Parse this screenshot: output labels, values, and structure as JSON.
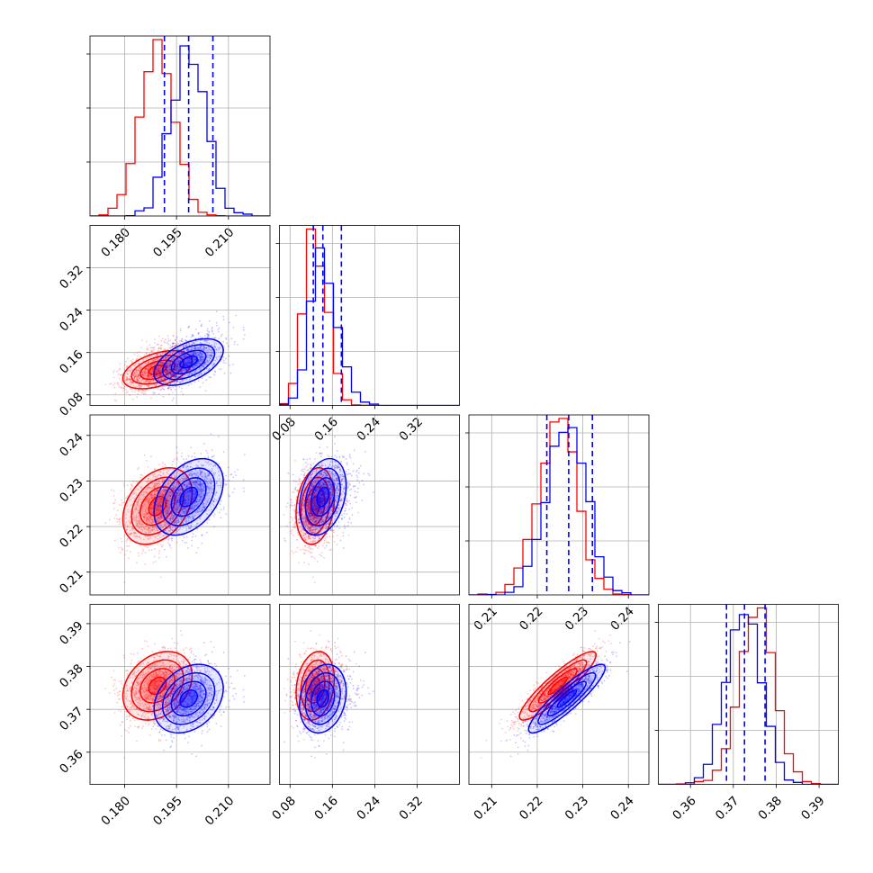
{
  "chart_data": {
    "type": "corner",
    "grid": true,
    "colors": {
      "series_a": "#ff0000",
      "series_b": "#0000ff",
      "quantiles": "#0000ff"
    },
    "parameters": [
      {
        "range": [
          0.17,
          0.222
        ],
        "ticks": [
          0.18,
          0.195,
          0.21
        ],
        "tick_labels": [
          "0.180",
          "0.195",
          "0.210"
        ]
      },
      {
        "range": [
          0.06,
          0.4
        ],
        "ticks": [
          0.08,
          0.16,
          0.24,
          0.32
        ],
        "tick_labels": [
          "0.08",
          "0.16",
          "0.24",
          "0.32"
        ]
      },
      {
        "range": [
          0.205,
          0.2445
        ],
        "ticks": [
          0.21,
          0.22,
          0.23,
          0.24
        ],
        "tick_labels": [
          "0.21",
          "0.22",
          "0.23",
          "0.24"
        ]
      },
      {
        "range": [
          0.3525,
          0.3945
        ],
        "ticks": [
          0.36,
          0.37,
          0.38,
          0.39
        ],
        "tick_labels": [
          "0.36",
          "0.37",
          "0.38",
          "0.39"
        ]
      }
    ],
    "series": [
      {
        "color": "#ff0000",
        "mean": [
          0.1895,
          0.1275,
          0.2245,
          0.3755
        ],
        "std": [
          0.005,
          0.018,
          0.0042,
          0.004
        ],
        "corr": [
          [
            1.0,
            0.45,
            0.35,
            0.3
          ],
          [
            0.45,
            1.0,
            0.2,
            0.2
          ],
          [
            0.35,
            0.2,
            1.0,
            0.9
          ],
          [
            0.3,
            0.2,
            0.9,
            1.0
          ]
        ]
      },
      {
        "color": "#0000ff",
        "mean": [
          0.1985,
          0.142,
          0.2265,
          0.3725
        ],
        "std": [
          0.005,
          0.022,
          0.0042,
          0.004
        ],
        "corr": [
          [
            1.0,
            0.5,
            0.4,
            0.3
          ],
          [
            0.5,
            1.0,
            0.3,
            0.2
          ],
          [
            0.4,
            0.3,
            1.0,
            0.9
          ],
          [
            0.3,
            0.2,
            0.9,
            1.0
          ]
        ]
      }
    ],
    "quantile_lines": [
      [
        0.1915,
        0.1985,
        0.2055
      ],
      [
        0.124,
        0.142,
        0.177
      ],
      [
        0.2221,
        0.2269,
        0.2321
      ],
      [
        0.3684,
        0.3726,
        0.3774
      ]
    ]
  }
}
